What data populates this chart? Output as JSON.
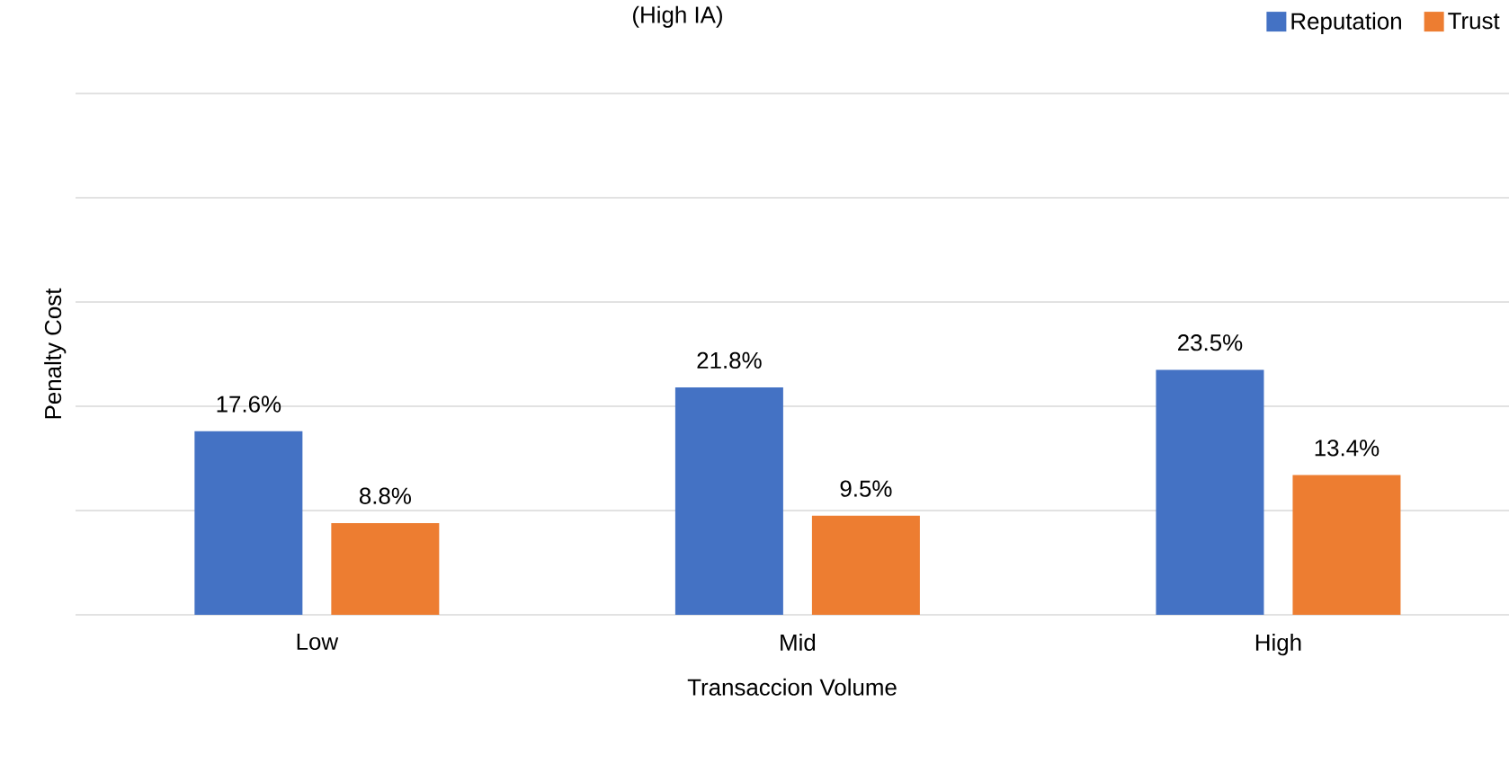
{
  "chart_data": {
    "type": "bar",
    "title": "(High IA)",
    "xlabel": "Transaccion Volume",
    "ylabel": "Penalty Cost",
    "categories": [
      "Low",
      "Mid",
      "High"
    ],
    "series": [
      {
        "name": "Reputation",
        "color": "#4472c4",
        "values": [
          17.6,
          21.8,
          23.5
        ],
        "value_labels": [
          "17.6%",
          "21.8%",
          "23.5%"
        ]
      },
      {
        "name": "Trust",
        "color": "#ed7d31",
        "values": [
          8.8,
          9.5,
          13.4
        ],
        "value_labels": [
          "8.8%",
          "9.5%",
          "13.4%"
        ]
      }
    ],
    "ylim": [
      0,
      50
    ],
    "yticks": [
      {
        "value": 0,
        "label": null
      },
      {
        "value": 10,
        "label": null
      },
      {
        "value": 20,
        "label": null
      },
      {
        "value": 30,
        "label": null
      },
      {
        "value": 40,
        "label": null
      },
      {
        "value": 50,
        "label": null
      }
    ],
    "tick_labels": "x",
    "grid": "y",
    "legend": "top right"
  }
}
